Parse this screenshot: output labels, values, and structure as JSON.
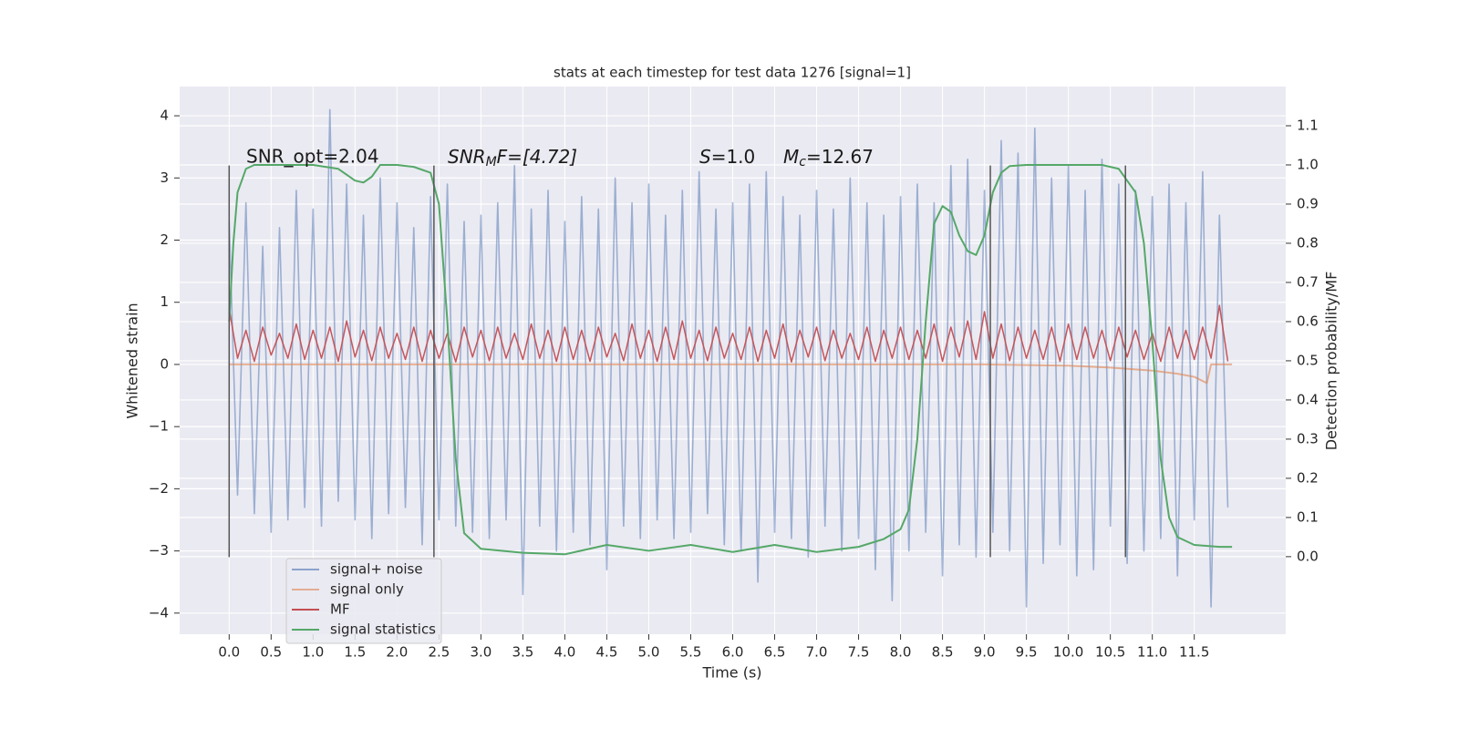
{
  "chart_data": {
    "type": "line",
    "title": "stats at each timestep for test data 1276 [signal=1]",
    "xlabel": "Time (s)",
    "ylabel": "Whitened strain",
    "y2label": "Detection probability/MF",
    "xlim": [
      -0.59,
      12.59
    ],
    "ylim": [
      -4.34,
      4.47
    ],
    "y2lim": [
      -0.198,
      1.2
    ],
    "xticks": [
      {
        "value": 0,
        "label": "0.0"
      },
      0.5,
      {
        "value": 1,
        "label": "1.0"
      },
      1.5,
      {
        "value": 2,
        "label": "2.0"
      },
      2.5,
      {
        "value": 3,
        "label": "3.0"
      },
      3.5,
      {
        "value": 4,
        "label": "4.0"
      },
      4.5,
      {
        "value": 5,
        "label": "5.0"
      },
      5.5,
      {
        "value": 6,
        "label": "6.0"
      },
      6.5,
      {
        "value": 7,
        "label": "7.0"
      },
      7.5,
      {
        "value": 8,
        "label": "8.0"
      },
      8.5,
      {
        "value": 9,
        "label": "9.0"
      },
      9.5,
      {
        "value": 10,
        "label": "10.0"
      },
      10.5,
      {
        "value": 11,
        "label": "11.0"
      },
      11.5
    ],
    "yticks": [
      {
        "value": -4,
        "label": "−4"
      },
      {
        "value": -3,
        "label": "−3"
      },
      {
        "value": -2,
        "label": "−2"
      },
      {
        "value": -1,
        "label": "−1"
      },
      0,
      1,
      2,
      3,
      4
    ],
    "y2ticks": [
      {
        "value": 0,
        "label": "0.0"
      },
      0.1,
      0.2,
      0.3,
      0.4,
      0.5,
      0.6,
      0.7,
      0.8,
      0.9,
      {
        "value": 1,
        "label": "1.0"
      },
      1.1
    ],
    "grid": true,
    "legend": "lower left",
    "series": [
      {
        "name": "signal+ noise",
        "color": "#4c72b0",
        "x": [
          0.0,
          0.1,
          0.2,
          0.3,
          0.4,
          0.5,
          0.6,
          0.7,
          0.8,
          0.9,
          1.0,
          1.1,
          1.2,
          1.3,
          1.4,
          1.5,
          1.6,
          1.7,
          1.8,
          1.9,
          2.0,
          2.1,
          2.2,
          2.3,
          2.4,
          2.5,
          2.6,
          2.7,
          2.8,
          2.9,
          3.0,
          3.1,
          3.2,
          3.3,
          3.4,
          3.5,
          3.6,
          3.7,
          3.8,
          3.9,
          4.0,
          4.1,
          4.2,
          4.3,
          4.4,
          4.5,
          4.6,
          4.7,
          4.8,
          4.9,
          5.0,
          5.1,
          5.2,
          5.3,
          5.4,
          5.5,
          5.6,
          5.7,
          5.8,
          5.9,
          6.0,
          6.1,
          6.2,
          6.3,
          6.4,
          6.5,
          6.6,
          6.7,
          6.8,
          6.9,
          7.0,
          7.1,
          7.2,
          7.3,
          7.4,
          7.5,
          7.6,
          7.7,
          7.8,
          7.9,
          8.0,
          8.1,
          8.2,
          8.3,
          8.4,
          8.5,
          8.6,
          8.7,
          8.8,
          8.9,
          9.0,
          9.1,
          9.2,
          9.3,
          9.4,
          9.5,
          9.6,
          9.7,
          9.8,
          9.9,
          10.0,
          10.1,
          10.2,
          10.3,
          10.4,
          10.5,
          10.6,
          10.7,
          10.8,
          10.9,
          11.0,
          11.1,
          11.2,
          11.3,
          11.4,
          11.5,
          11.6,
          11.7,
          11.8,
          11.9
        ],
        "values": [
          2.3,
          -2.1,
          2.6,
          -2.4,
          1.9,
          -2.7,
          2.2,
          -2.5,
          2.8,
          -2.3,
          2.5,
          -2.6,
          4.1,
          -2.2,
          2.9,
          -2.5,
          2.4,
          -2.8,
          3.0,
          -2.4,
          2.6,
          -2.3,
          2.2,
          -2.9,
          2.7,
          -2.5,
          2.9,
          -2.6,
          2.3,
          -2.7,
          2.4,
          -2.8,
          2.6,
          -2.5,
          3.2,
          -3.7,
          2.5,
          -2.6,
          2.8,
          -3.0,
          2.3,
          -2.7,
          2.7,
          -2.9,
          2.5,
          -3.3,
          3.0,
          -2.6,
          2.6,
          -2.8,
          2.9,
          -2.5,
          2.4,
          -2.8,
          2.8,
          -2.7,
          3.1,
          -2.4,
          2.5,
          -2.9,
          2.6,
          -3.0,
          2.9,
          -3.5,
          3.1,
          -2.7,
          2.7,
          -2.8,
          2.4,
          -3.1,
          2.8,
          -2.6,
          2.5,
          -3.0,
          3.0,
          -2.8,
          2.6,
          -3.3,
          2.4,
          -3.8,
          2.7,
          -3.0,
          2.9,
          -2.7,
          2.6,
          -3.4,
          3.2,
          -2.9,
          3.3,
          -3.1,
          2.8,
          -2.7,
          3.6,
          -3.0,
          3.4,
          -3.9,
          3.8,
          -3.2,
          3.0,
          -2.9,
          3.2,
          -3.4,
          2.8,
          -3.3,
          3.3,
          -2.6,
          2.9,
          -3.2,
          2.8,
          -3.0,
          2.7,
          -2.8,
          2.9,
          -3.4,
          2.6,
          -2.5,
          3.1,
          -3.9,
          2.4,
          -2.3
        ]
      },
      {
        "name": "signal only",
        "color": "#dd8452",
        "x": [
          0,
          2,
          4,
          6,
          8,
          9,
          10,
          10.5,
          11,
          11.3,
          11.5,
          11.65,
          11.7,
          11.95
        ],
        "values": [
          0,
          0,
          0,
          0,
          0,
          0,
          -0.02,
          -0.05,
          -0.1,
          -0.15,
          -0.2,
          -0.3,
          0,
          0
        ]
      },
      {
        "name": "MF",
        "color": "#c44e52",
        "x": [
          0.0,
          0.1,
          0.2,
          0.3,
          0.4,
          0.5,
          0.6,
          0.7,
          0.8,
          0.9,
          1.0,
          1.1,
          1.2,
          1.3,
          1.4,
          1.5,
          1.6,
          1.7,
          1.8,
          1.9,
          2.0,
          2.1,
          2.2,
          2.3,
          2.4,
          2.5,
          2.6,
          2.7,
          2.8,
          2.9,
          3.0,
          3.1,
          3.2,
          3.3,
          3.4,
          3.5,
          3.6,
          3.7,
          3.8,
          3.9,
          4.0,
          4.1,
          4.2,
          4.3,
          4.4,
          4.5,
          4.6,
          4.7,
          4.8,
          4.9,
          5.0,
          5.1,
          5.2,
          5.3,
          5.4,
          5.5,
          5.6,
          5.7,
          5.8,
          5.9,
          6.0,
          6.1,
          6.2,
          6.3,
          6.4,
          6.5,
          6.6,
          6.7,
          6.8,
          6.9,
          7.0,
          7.1,
          7.2,
          7.3,
          7.4,
          7.5,
          7.6,
          7.7,
          7.8,
          7.9,
          8.0,
          8.1,
          8.2,
          8.3,
          8.4,
          8.5,
          8.6,
          8.7,
          8.8,
          8.9,
          9.0,
          9.1,
          9.2,
          9.3,
          9.4,
          9.5,
          9.6,
          9.7,
          9.8,
          9.9,
          10.0,
          10.1,
          10.2,
          10.3,
          10.4,
          10.5,
          10.6,
          10.7,
          10.8,
          10.9,
          11.0,
          11.1,
          11.2,
          11.3,
          11.4,
          11.5,
          11.6,
          11.7,
          11.8,
          11.9
        ],
        "values": [
          0.9,
          0.1,
          0.55,
          0.05,
          0.6,
          0.15,
          0.5,
          0.1,
          0.65,
          0.08,
          0.55,
          0.1,
          0.6,
          0.05,
          0.7,
          0.12,
          0.55,
          0.06,
          0.6,
          0.1,
          0.5,
          0.08,
          0.6,
          0.05,
          0.55,
          0.1,
          0.5,
          0.04,
          0.6,
          0.12,
          0.55,
          0.06,
          0.6,
          0.1,
          0.5,
          0.08,
          0.65,
          0.1,
          0.55,
          0.05,
          0.6,
          0.08,
          0.55,
          0.05,
          0.6,
          0.12,
          0.5,
          0.06,
          0.65,
          0.1,
          0.55,
          0.05,
          0.6,
          0.08,
          0.7,
          0.1,
          0.55,
          0.06,
          0.6,
          0.1,
          0.5,
          0.08,
          0.6,
          0.05,
          0.55,
          0.1,
          0.65,
          0.04,
          0.55,
          0.12,
          0.6,
          0.06,
          0.55,
          0.1,
          0.5,
          0.08,
          0.6,
          0.05,
          0.55,
          0.1,
          0.6,
          0.08,
          0.55,
          0.1,
          0.65,
          0.05,
          0.6,
          0.12,
          0.7,
          0.08,
          0.85,
          0.1,
          0.65,
          0.06,
          0.6,
          0.1,
          0.55,
          0.08,
          0.6,
          0.05,
          0.65,
          0.08,
          0.6,
          0.1,
          0.55,
          0.06,
          0.6,
          0.12,
          0.55,
          0.08,
          0.5,
          0.05,
          0.6,
          0.1,
          0.55,
          0.08,
          0.6,
          0.1,
          0.95,
          0.05
        ]
      },
      {
        "name": "signal statistics",
        "color": "#55a868",
        "axis": "y2",
        "x": [
          0,
          0.05,
          0.1,
          0.2,
          0.3,
          0.5,
          1.0,
          1.3,
          1.5,
          1.6,
          1.7,
          1.8,
          2.0,
          2.2,
          2.4,
          2.5,
          2.6,
          2.7,
          2.8,
          3.0,
          3.5,
          4.0,
          4.5,
          5.0,
          5.5,
          6.0,
          6.5,
          7.0,
          7.5,
          7.8,
          8.0,
          8.1,
          8.2,
          8.3,
          8.4,
          8.5,
          8.6,
          8.7,
          8.8,
          8.9,
          9.0,
          9.1,
          9.2,
          9.3,
          9.5,
          10.0,
          10.4,
          10.6,
          10.8,
          10.9,
          11.0,
          11.1,
          11.2,
          11.3,
          11.5,
          11.8,
          11.95
        ],
        "values": [
          0.6,
          0.8,
          0.93,
          0.99,
          1.0,
          1.0,
          1.0,
          0.99,
          0.96,
          0.955,
          0.97,
          1.0,
          1.0,
          0.995,
          0.98,
          0.9,
          0.6,
          0.25,
          0.06,
          0.02,
          0.01,
          0.006,
          0.03,
          0.015,
          0.03,
          0.012,
          0.03,
          0.012,
          0.025,
          0.045,
          0.07,
          0.12,
          0.3,
          0.6,
          0.85,
          0.895,
          0.88,
          0.82,
          0.78,
          0.77,
          0.82,
          0.93,
          0.98,
          0.997,
          1.0,
          1.0,
          1.0,
          0.99,
          0.93,
          0.8,
          0.55,
          0.25,
          0.1,
          0.05,
          0.03,
          0.025,
          0.025
        ]
      }
    ],
    "vlines": {
      "x": [
        0,
        2.44,
        9.07,
        10.68
      ],
      "ymin": -3.1,
      "ymax": 3.2,
      "color": "#555555"
    },
    "annotations": {
      "snr_opt": "SNR_opt=2.04",
      "snr_mf": [
        "SNR",
        "M",
        "F=[4.72]"
      ],
      "s": [
        "S",
        "=1.0"
      ],
      "mc": [
        "M",
        "c",
        "=12.67"
      ]
    }
  }
}
